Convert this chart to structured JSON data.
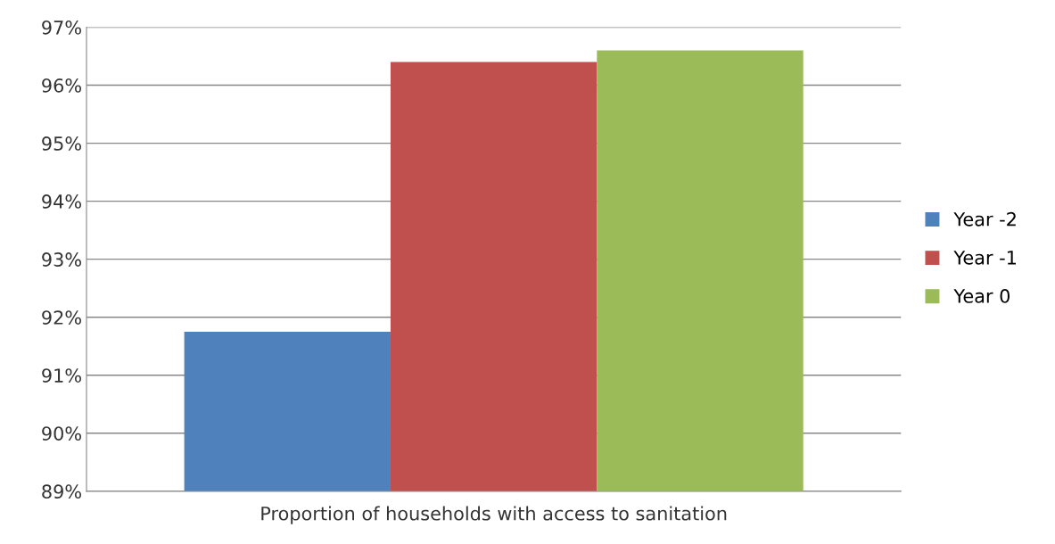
{
  "chart_data": {
    "type": "bar",
    "categories": [
      "Proportion of households with access to sanitation"
    ],
    "series": [
      {
        "name": "Year -2",
        "color": "#4f81bd",
        "values": [
          91.75
        ]
      },
      {
        "name": "Year -1",
        "color": "#c0504d",
        "values": [
          96.4
        ]
      },
      {
        "name": "Year 0",
        "color": "#9bbb59",
        "values": [
          96.6
        ]
      }
    ],
    "ylim": [
      89,
      97
    ],
    "yticks": [
      {
        "value": 89,
        "label": "89%"
      },
      {
        "value": 90,
        "label": "90%"
      },
      {
        "value": 91,
        "label": "91%"
      },
      {
        "value": 92,
        "label": "92%"
      },
      {
        "value": 93,
        "label": "93%"
      },
      {
        "value": 94,
        "label": "94%"
      },
      {
        "value": 95,
        "label": "95%"
      },
      {
        "value": 96,
        "label": "96%"
      },
      {
        "value": 97,
        "label": "97%"
      }
    ],
    "grid": "y",
    "legend": "right"
  }
}
